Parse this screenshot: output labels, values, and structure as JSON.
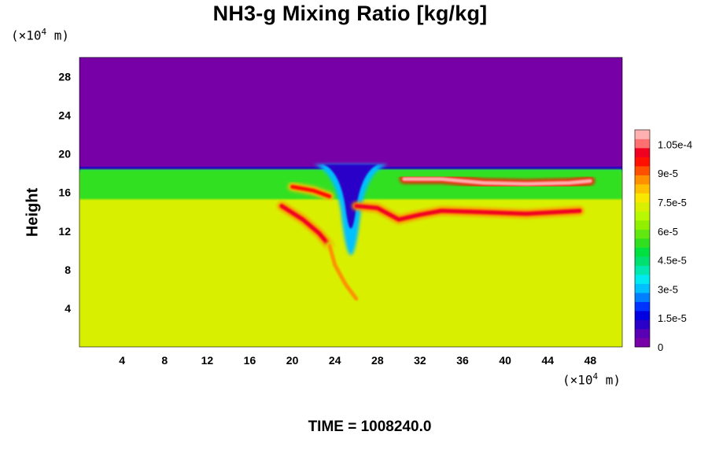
{
  "chart_data": {
    "type": "heatmap",
    "title": "NH3-g Mixing Ratio [kg/kg]",
    "xlabel": "",
    "ylabel": "Height",
    "x_unit": {
      "prefix": "(×10",
      "exp": "4",
      "suffix": " m)"
    },
    "y_unit": {
      "prefix": "(×10",
      "exp": "4",
      "suffix": " m)"
    },
    "xlim": [
      0,
      51
    ],
    "ylim": [
      0,
      30
    ],
    "x_ticks": [
      4,
      8,
      12,
      16,
      20,
      24,
      28,
      32,
      36,
      40,
      44,
      48
    ],
    "y_ticks": [
      4,
      8,
      12,
      16,
      20,
      24,
      28
    ],
    "colorbar": {
      "min": 0,
      "max": 0.0001125,
      "labels": [
        {
          "value": 0,
          "text": "0"
        },
        {
          "value": 1.5e-05,
          "text": "1.5e-5"
        },
        {
          "value": 3e-05,
          "text": "3e-5"
        },
        {
          "value": 4.5e-05,
          "text": "4.5e-5"
        },
        {
          "value": 6e-05,
          "text": "6e-5"
        },
        {
          "value": 7.5e-05,
          "text": "7.5e-5"
        },
        {
          "value": 9e-05,
          "text": "9e-5"
        },
        {
          "value": 0.000105,
          "text": "1.05e-4"
        }
      ],
      "colors": [
        "#7700a6",
        "#5a00b4",
        "#2a00c8",
        "#0000e0",
        "#0033ff",
        "#0080ff",
        "#00c0ff",
        "#00eaf0",
        "#00e8b0",
        "#00e070",
        "#00e040",
        "#30e020",
        "#60e810",
        "#90f000",
        "#b8f800",
        "#d8f000",
        "#f8e800",
        "#ffc000",
        "#ff9000",
        "#ff5000",
        "#ff1000",
        "#f00020",
        "#ff7070",
        "#ffb0b0"
      ]
    },
    "field": {
      "background_value": 7.4e-05,
      "upper_value": 0,
      "tropopause_height": 18.6,
      "green_band": {
        "from": 15.3,
        "to": 18.4,
        "value": 5.6e-05
      },
      "features": [
        {
          "kind": "depression",
          "x": 25.5,
          "top": 9.5,
          "width": 3.2,
          "value": 3e-05
        },
        {
          "kind": "band",
          "points": [
            [
              19,
              14.6
            ],
            [
              21,
              13.2
            ],
            [
              22.5,
              11.8
            ],
            [
              23.5,
              10.5
            ]
          ],
          "value": 0.0001
        },
        {
          "kind": "band",
          "points": [
            [
              26,
              14.6
            ],
            [
              28,
              14.4
            ],
            [
              30,
              13.2
            ],
            [
              32,
              13.7
            ],
            [
              34,
              14.1
            ],
            [
              37,
              14.0
            ],
            [
              42,
              13.8
            ],
            [
              47,
              14.1
            ]
          ],
          "value": 0.0001
        },
        {
          "kind": "band",
          "points": [
            [
              30.5,
              17.4
            ],
            [
              34,
              17.4
            ],
            [
              38,
              17.0
            ],
            [
              42,
              16.9
            ],
            [
              46,
              17.0
            ],
            [
              48,
              17.2
            ]
          ],
          "value": 0.00011
        },
        {
          "kind": "band",
          "points": [
            [
              20,
              16.6
            ],
            [
              22,
              16.2
            ],
            [
              23.5,
              15.6
            ]
          ],
          "value": 9.5e-05
        },
        {
          "kind": "band",
          "points": [
            [
              23.5,
              10.5
            ],
            [
              24,
              8.5
            ],
            [
              25,
              6.5
            ],
            [
              26,
              5
            ]
          ],
          "value": 8.8e-05
        }
      ]
    }
  },
  "footer": {
    "label": "TIME = 1008240.0"
  }
}
